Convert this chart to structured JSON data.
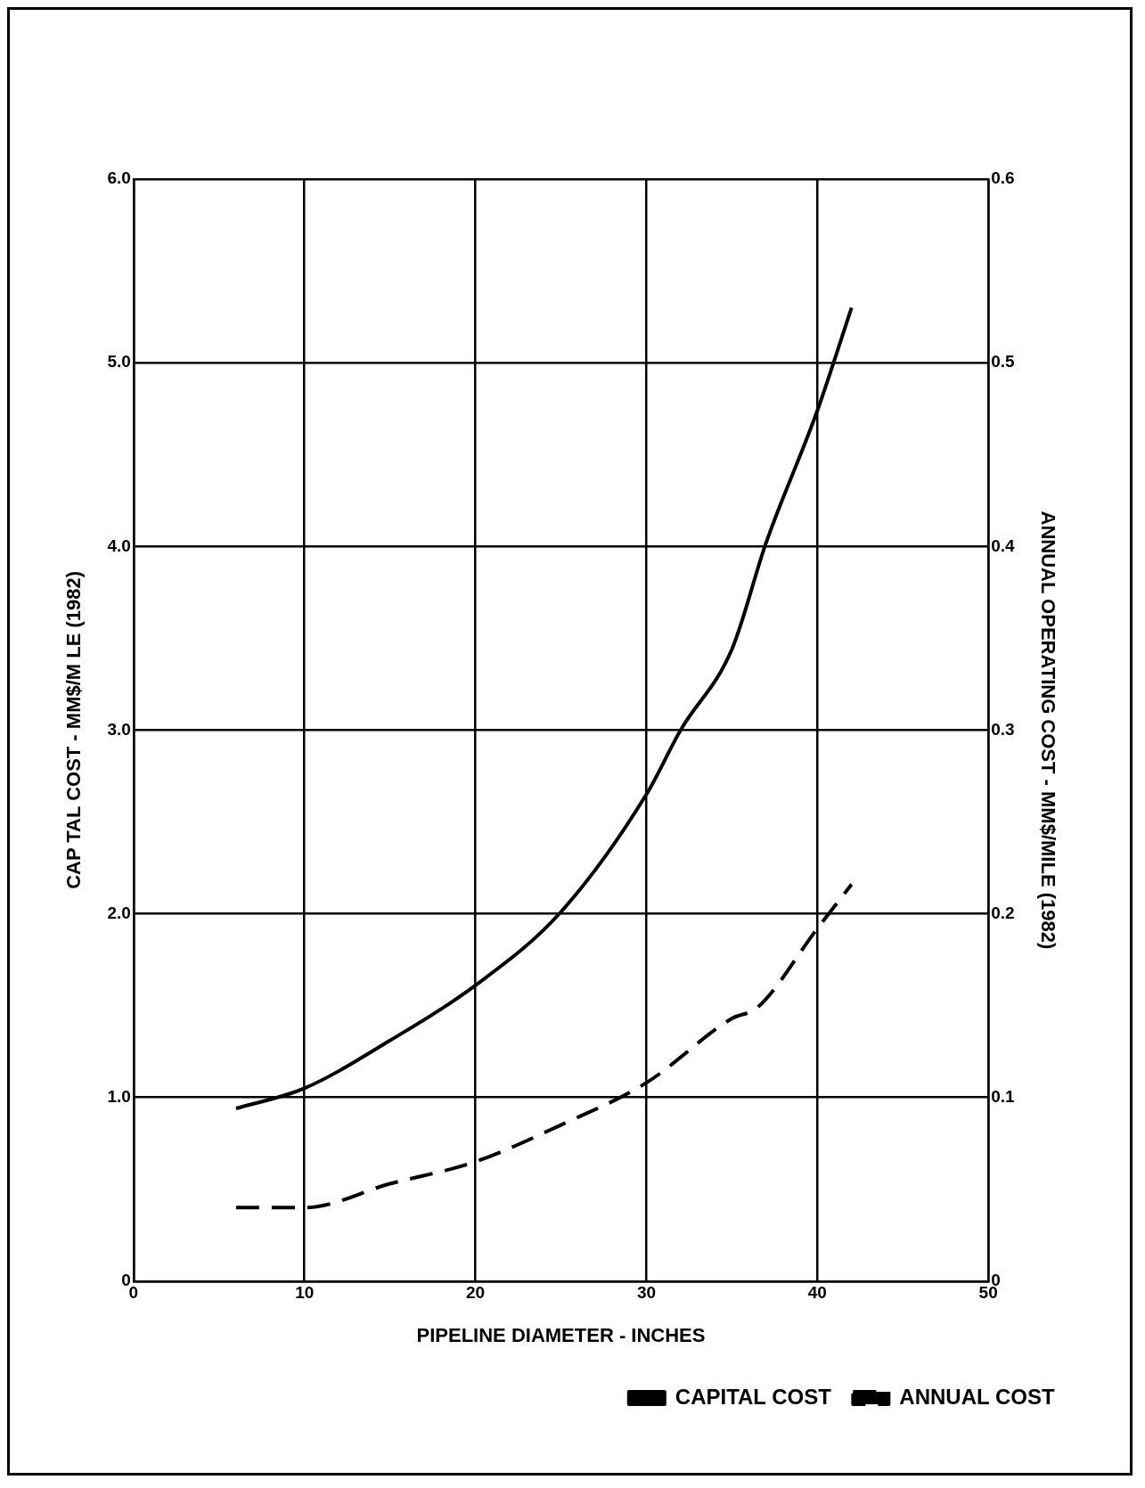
{
  "chart_data": {
    "type": "line",
    "xlabel": "PIPELINE DIAMETER - INCHES",
    "ylabel": "CAP TAL COST - MM$/M LE (1982)",
    "y2label": "ANNUAL OPERATING COST - MM$/MILE (1982)",
    "xlim": [
      0,
      50
    ],
    "xticks": [
      0,
      10,
      20,
      30,
      40,
      50
    ],
    "ylim": [
      0,
      6
    ],
    "yticks": [
      0,
      {
        "value": 1,
        "label": "1.0"
      },
      {
        "value": 2,
        "label": "2.0"
      },
      {
        "value": 3,
        "label": "3.0"
      },
      {
        "value": 4,
        "label": "4.0"
      },
      {
        "value": 5,
        "label": "5.0"
      },
      {
        "value": 6,
        "label": "6.0"
      }
    ],
    "y2lim": [
      0,
      0.6
    ],
    "y2ticks": [
      0,
      0.1,
      0.2,
      0.3,
      0.4,
      0.5,
      0.6
    ],
    "grid": true,
    "legend": "bottom right",
    "marker": "none",
    "series": [
      {
        "name": "CAPITAL COST",
        "color": "#000000",
        "line_style": "solid",
        "x": [
          6,
          10,
          15,
          20,
          25,
          30,
          32,
          35,
          37,
          40,
          42
        ],
        "values": [
          0.94,
          1.05,
          1.31,
          1.61,
          2.01,
          2.65,
          3.0,
          3.44,
          4.02,
          4.74,
          5.3
        ]
      },
      {
        "name": "ANNUAL COST",
        "color": "#000000",
        "line_style": "dashed",
        "axis": "y2",
        "x": [
          6,
          10,
          15,
          20,
          25,
          30,
          35,
          36.5,
          40,
          42
        ],
        "values": [
          0.04,
          0.04,
          0.053,
          0.065,
          0.085,
          0.108,
          0.143,
          0.149,
          0.192,
          0.216
        ]
      }
    ]
  }
}
